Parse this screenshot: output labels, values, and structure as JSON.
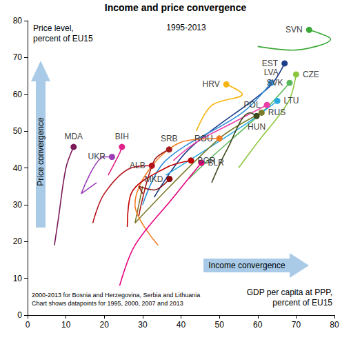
{
  "chart_data": {
    "type": "line",
    "title": "Income and price convergence",
    "subtitle": "1995-2013",
    "x_label": "GDP per capita at PPP,\npercent of EU15",
    "y_label": "Price level,\npercent of EU15",
    "annotations": [
      "Price convergence",
      "Income convergence",
      "2000-2013 for Bosnia and Herzegovina, Serbia and Lithuania\nChart shows datapoints for 1995, 2000, 2007 and 2013"
    ],
    "xlim": [
      0,
      80
    ],
    "xticks": [
      0,
      10,
      20,
      30,
      40,
      50,
      60,
      70,
      80
    ],
    "ylim": [
      0,
      80
    ],
    "yticks": [
      0,
      10,
      20,
      30,
      40,
      50,
      60,
      70,
      80
    ],
    "grid": false,
    "marker": "circle",
    "series": [
      {
        "name": "SVN",
        "color": "#3aa935",
        "x": [
          60,
          69,
          79,
          73.4
        ],
        "values": [
          73,
          72,
          75,
          77.5
        ]
      },
      {
        "name": "EST",
        "color": "#1b3f8b",
        "x": [
          33,
          42,
          63,
          67
        ],
        "values": [
          32,
          45,
          62,
          68.4
        ]
      },
      {
        "name": "CZE",
        "color": "#8cc63e",
        "x": [
          55,
          60,
          68,
          70
        ],
        "values": [
          40,
          47,
          58,
          65.4
        ]
      },
      {
        "name": "SVK",
        "color": "#5cb85c",
        "x": [
          42,
          47,
          62,
          68.3
        ],
        "values": [
          37,
          42,
          56,
          63.1
        ]
      },
      {
        "name": "LVA",
        "color": "#2e8bd6",
        "x": [
          30,
          36,
          56,
          63.5
        ],
        "values": [
          30,
          42,
          55,
          63.1
        ]
      },
      {
        "name": "HRV",
        "color": "#f6b40e",
        "x": [
          44,
          48,
          56,
          51.8
        ],
        "values": [
          50,
          57,
          60,
          62.7
        ]
      },
      {
        "name": "LTU",
        "color": "#29abe2",
        "x": [
          36,
          57,
          65.1
        ],
        "values": [
          38,
          52,
          58.2
        ]
      },
      {
        "name": "POL",
        "color": "#ec3ea5",
        "x": [
          38,
          44,
          53,
          62.4
        ],
        "values": [
          42,
          47,
          52,
          57.1
        ]
      },
      {
        "name": "RUS",
        "color": "#7a7a2a",
        "x": [
          30,
          28,
          50,
          61
        ],
        "values": [
          35,
          25,
          48,
          55
        ]
      },
      {
        "name": "HUN",
        "color": "#3d4a1e",
        "x": [
          48,
          52,
          58,
          59.7
        ],
        "values": [
          36,
          45,
          55,
          54.1
        ]
      },
      {
        "name": "ROU",
        "color": "#f47b20",
        "x": [
          34,
          28,
          40,
          50
        ],
        "values": [
          19,
          30,
          47,
          48
        ]
      },
      {
        "name": "BGR",
        "color": "#c00000",
        "x": [
          26,
          27,
          36,
          42.6
        ],
        "values": [
          24,
          33,
          40,
          42
        ]
      },
      {
        "name": "BLR",
        "color": "#e6007e",
        "x": [
          24,
          28,
          38,
          45.3
        ],
        "values": [
          8,
          19,
          32,
          41.4
        ]
      },
      {
        "name": "MKD",
        "color": "#8b0a0a",
        "x": [
          30,
          29,
          33,
          37
        ],
        "values": [
          33,
          35,
          34,
          37
        ]
      },
      {
        "name": "SRB",
        "color": "#a51c1c",
        "x": [
          29,
          33,
          36.9
        ],
        "values": [
          27,
          42,
          45
        ]
      },
      {
        "name": "ALB",
        "color": "#b5121b",
        "x": [
          17,
          20,
          27,
          32.4
        ],
        "values": [
          25,
          33,
          40,
          40.6
        ]
      },
      {
        "name": "UKR",
        "color": "#9b3db7",
        "x": [
          18,
          14,
          20,
          22
        ],
        "values": [
          36,
          33,
          43,
          43
        ]
      },
      {
        "name": "BIH",
        "color": "#e0218a",
        "x": [
          21,
          24,
          24.6
        ],
        "values": [
          38,
          44,
          45.7
        ]
      },
      {
        "name": "MDA",
        "color": "#7b1a57",
        "x": [
          7,
          8,
          10,
          12
        ],
        "values": [
          19,
          26,
          40,
          45.7
        ]
      }
    ]
  }
}
